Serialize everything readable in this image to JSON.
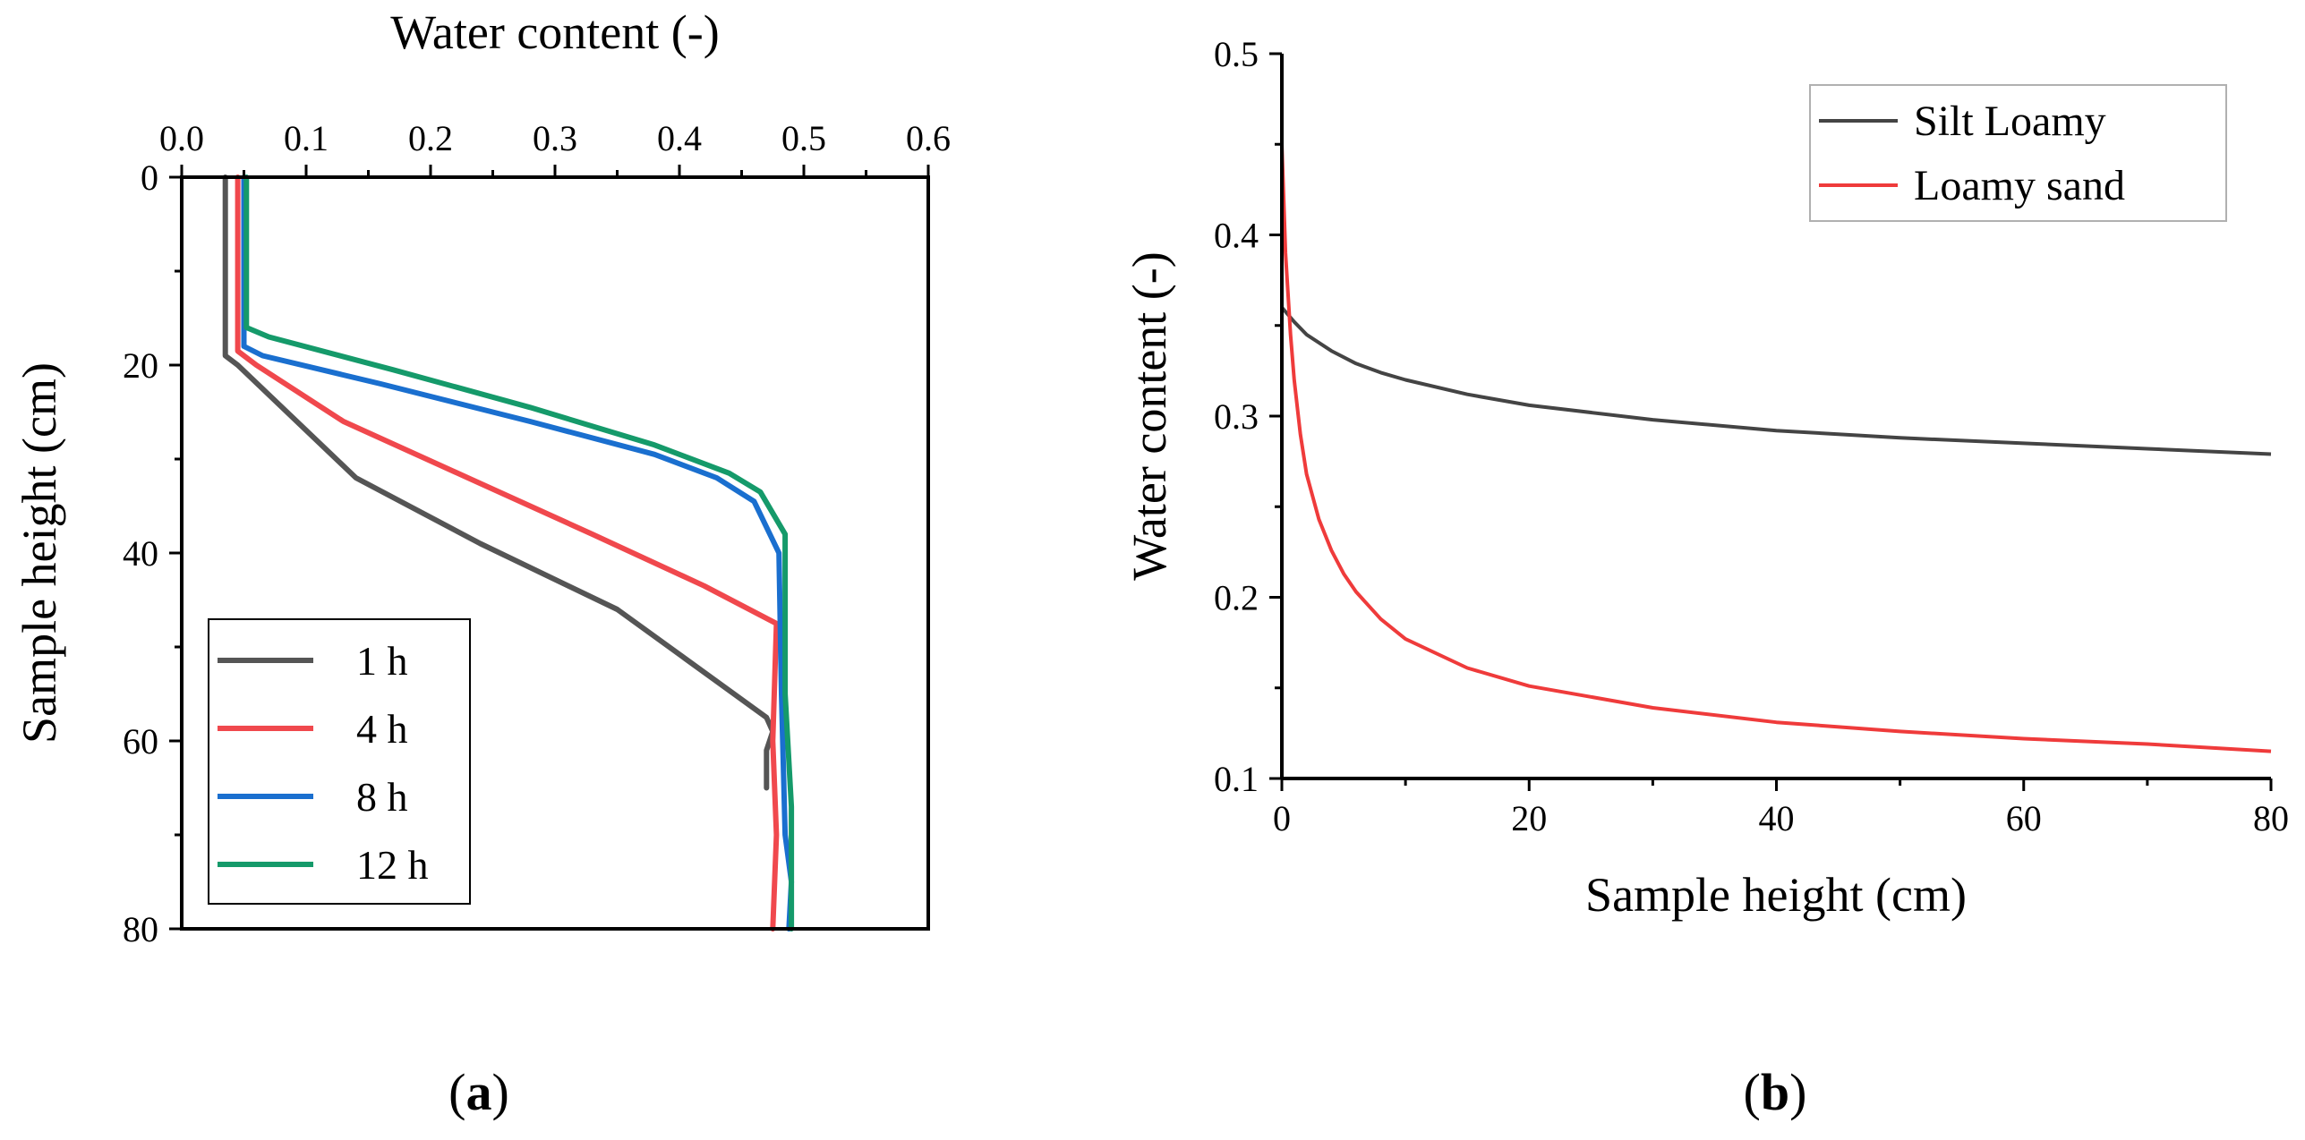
{
  "chart_data": [
    {
      "panel": "a",
      "type": "line",
      "orientation": "profile",
      "title": "",
      "xlabel": "Water content (-)",
      "ylabel": "Sample height (cm)",
      "xlim": [
        0.0,
        0.6
      ],
      "ylim": [
        0,
        80
      ],
      "x_axis_position": "top",
      "y_inverted": true,
      "xticks": [
        0.0,
        0.1,
        0.2,
        0.3,
        0.4,
        0.5,
        0.6
      ],
      "xtick_labels": [
        "0.0",
        "0.1",
        "0.2",
        "0.3",
        "0.4",
        "0.5",
        "0.6"
      ],
      "yticks": [
        0,
        20,
        40,
        60,
        80
      ],
      "ytick_labels": [
        "0",
        "20",
        "40",
        "60",
        "80"
      ],
      "legend_position": "bottom-left",
      "series": [
        {
          "name": "1 h",
          "color": "#555555",
          "points": [
            [
              0.035,
              0
            ],
            [
              0.035,
              19
            ],
            [
              0.045,
              20
            ],
            [
              0.14,
              32
            ],
            [
              0.24,
              39
            ],
            [
              0.35,
              46
            ],
            [
              0.47,
              57.5
            ],
            [
              0.475,
              59
            ],
            [
              0.47,
              61
            ],
            [
              0.47,
              65
            ]
          ]
        },
        {
          "name": "4 h",
          "color": "#f0484d",
          "points": [
            [
              0.045,
              0
            ],
            [
              0.045,
              18.5
            ],
            [
              0.06,
              20
            ],
            [
              0.13,
              26
            ],
            [
              0.23,
              32
            ],
            [
              0.33,
              38
            ],
            [
              0.42,
              43.5
            ],
            [
              0.478,
              47.5
            ],
            [
              0.475,
              60
            ],
            [
              0.478,
              70
            ],
            [
              0.475,
              80
            ]
          ]
        },
        {
          "name": "8 h",
          "color": "#1a6fcf",
          "points": [
            [
              0.05,
              0
            ],
            [
              0.05,
              18
            ],
            [
              0.065,
              19
            ],
            [
              0.16,
              22
            ],
            [
              0.28,
              26
            ],
            [
              0.38,
              29.5
            ],
            [
              0.43,
              32
            ],
            [
              0.46,
              34.5
            ],
            [
              0.48,
              40
            ],
            [
              0.482,
              55
            ],
            [
              0.485,
              70
            ],
            [
              0.49,
              75
            ],
            [
              0.488,
              80
            ]
          ]
        },
        {
          "name": "12 h",
          "color": "#159a6a",
          "points": [
            [
              0.052,
              0
            ],
            [
              0.052,
              16
            ],
            [
              0.07,
              17
            ],
            [
              0.17,
              20.5
            ],
            [
              0.28,
              24.5
            ],
            [
              0.38,
              28.5
            ],
            [
              0.44,
              31.5
            ],
            [
              0.465,
              33.5
            ],
            [
              0.485,
              38
            ],
            [
              0.485,
              55
            ],
            [
              0.49,
              67
            ],
            [
              0.49,
              75
            ],
            [
              0.49,
              80
            ]
          ]
        }
      ],
      "panel_label": "(a)"
    },
    {
      "panel": "b",
      "type": "line",
      "title": "",
      "xlabel": "Sample height (cm)",
      "ylabel": "Water content (-)",
      "xlim": [
        0,
        80
      ],
      "ylim": [
        0.1,
        0.5
      ],
      "xticks": [
        0,
        20,
        40,
        60,
        80
      ],
      "xtick_labels": [
        "0",
        "20",
        "40",
        "60",
        "80"
      ],
      "yticks": [
        0.1,
        0.2,
        0.3,
        0.4,
        0.5
      ],
      "ytick_labels": [
        "0.1",
        "0.2",
        "0.3",
        "0.4",
        "0.5"
      ],
      "legend_position": "top-right",
      "series": [
        {
          "name": "Silt Loamy",
          "color": "#444444",
          "x": [
            0,
            1,
            2,
            4,
            6,
            8,
            10,
            15,
            20,
            30,
            40,
            50,
            60,
            70,
            80
          ],
          "y": [
            0.36,
            0.352,
            0.345,
            0.336,
            0.329,
            0.324,
            0.32,
            0.312,
            0.306,
            0.298,
            0.292,
            0.288,
            0.285,
            0.282,
            0.279
          ]
        },
        {
          "name": "Loamy sand",
          "color": "#ef3b3b",
          "x": [
            0,
            0.3,
            0.7,
            1,
            1.5,
            2,
            3,
            4,
            5,
            6,
            8,
            10,
            15,
            20,
            30,
            40,
            50,
            60,
            70,
            80
          ],
          "y": [
            0.45,
            0.39,
            0.345,
            0.32,
            0.29,
            0.268,
            0.243,
            0.226,
            0.213,
            0.203,
            0.188,
            0.177,
            0.161,
            0.151,
            0.139,
            0.131,
            0.126,
            0.122,
            0.119,
            0.115
          ]
        }
      ],
      "panel_label": "(b)"
    }
  ],
  "panel_labels": {
    "a": {
      "open": "(",
      "letter": "a",
      "close": ")"
    },
    "b": {
      "open": "(",
      "letter": "b",
      "close": ")"
    }
  }
}
